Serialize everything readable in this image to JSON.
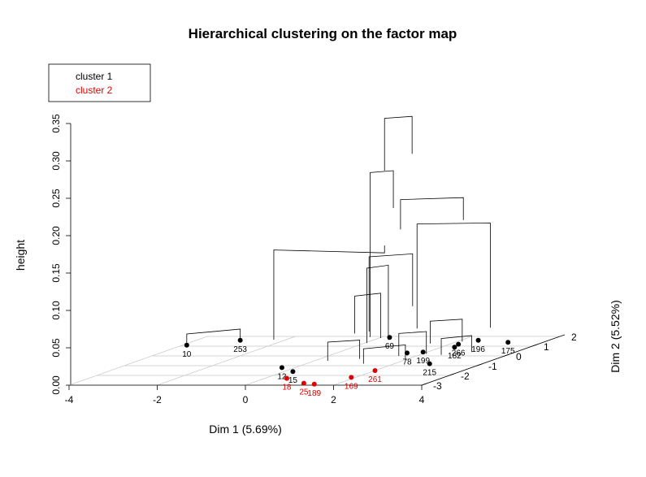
{
  "chart_data": {
    "type": "scatter",
    "variant": "3d-dendrogram-on-factor-map",
    "title": "Hierarchical clustering on the factor map",
    "xlabel": "Dim 1 (5.69%)",
    "ylabel": "Dim 2 (5.52%)",
    "zlabel": "height",
    "xlim": [
      -4,
      4
    ],
    "ylim": [
      -3,
      2
    ],
    "zlim": [
      0,
      0.35
    ],
    "x_ticks": [
      "-4",
      "-2",
      "0",
      "2",
      "4"
    ],
    "y_ticks": [
      "-3",
      "-2",
      "-1",
      "0",
      "1",
      "2"
    ],
    "z_ticks": [
      "0.00",
      "0.05",
      "0.10",
      "0.15",
      "0.20",
      "0.25",
      "0.30",
      "0.35"
    ],
    "grid": true,
    "legend": {
      "position": "top-left",
      "entries": [
        {
          "label": "cluster 1",
          "color": "#000000"
        },
        {
          "label": "cluster 2",
          "color": "#e00000"
        }
      ]
    },
    "series": [
      {
        "name": "cluster 1",
        "color": "#000000",
        "points": [
          {
            "label": "10",
            "x": -3.9,
            "y": 1.1
          },
          {
            "label": "253",
            "x": -3.0,
            "y": 1.6
          },
          {
            "label": "12",
            "x": -0.3,
            "y": -1.2
          },
          {
            "label": "15",
            "x": 0.2,
            "y": -1.6
          },
          {
            "label": "175",
            "x": 3.2,
            "y": 1.4
          },
          {
            "label": "215",
            "x": 2.8,
            "y": -0.8
          },
          {
            "label": "182",
            "x": 2.3,
            "y": 0.9
          },
          {
            "label": "199",
            "x": 1.9,
            "y": 0.4
          },
          {
            "label": "78",
            "x": 1.6,
            "y": 0.3
          },
          {
            "label": "69",
            "x": 0.2,
            "y": 1.9
          },
          {
            "label": "196",
            "x": 2.4,
            "y": 1.6
          },
          {
            "label": "266",
            "x": 2.2,
            "y": 1.2
          }
        ]
      },
      {
        "name": "cluster 2",
        "color": "#e00000",
        "points": [
          {
            "label": "18",
            "x": 0.5,
            "y": -2.3
          },
          {
            "label": "25",
            "x": 1.2,
            "y": -2.8
          },
          {
            "label": "189",
            "x": 1.5,
            "y": -2.9
          },
          {
            "label": "169",
            "x": 1.9,
            "y": -2.2
          },
          {
            "label": "261",
            "x": 2.0,
            "y": -1.5
          }
        ]
      }
    ]
  }
}
